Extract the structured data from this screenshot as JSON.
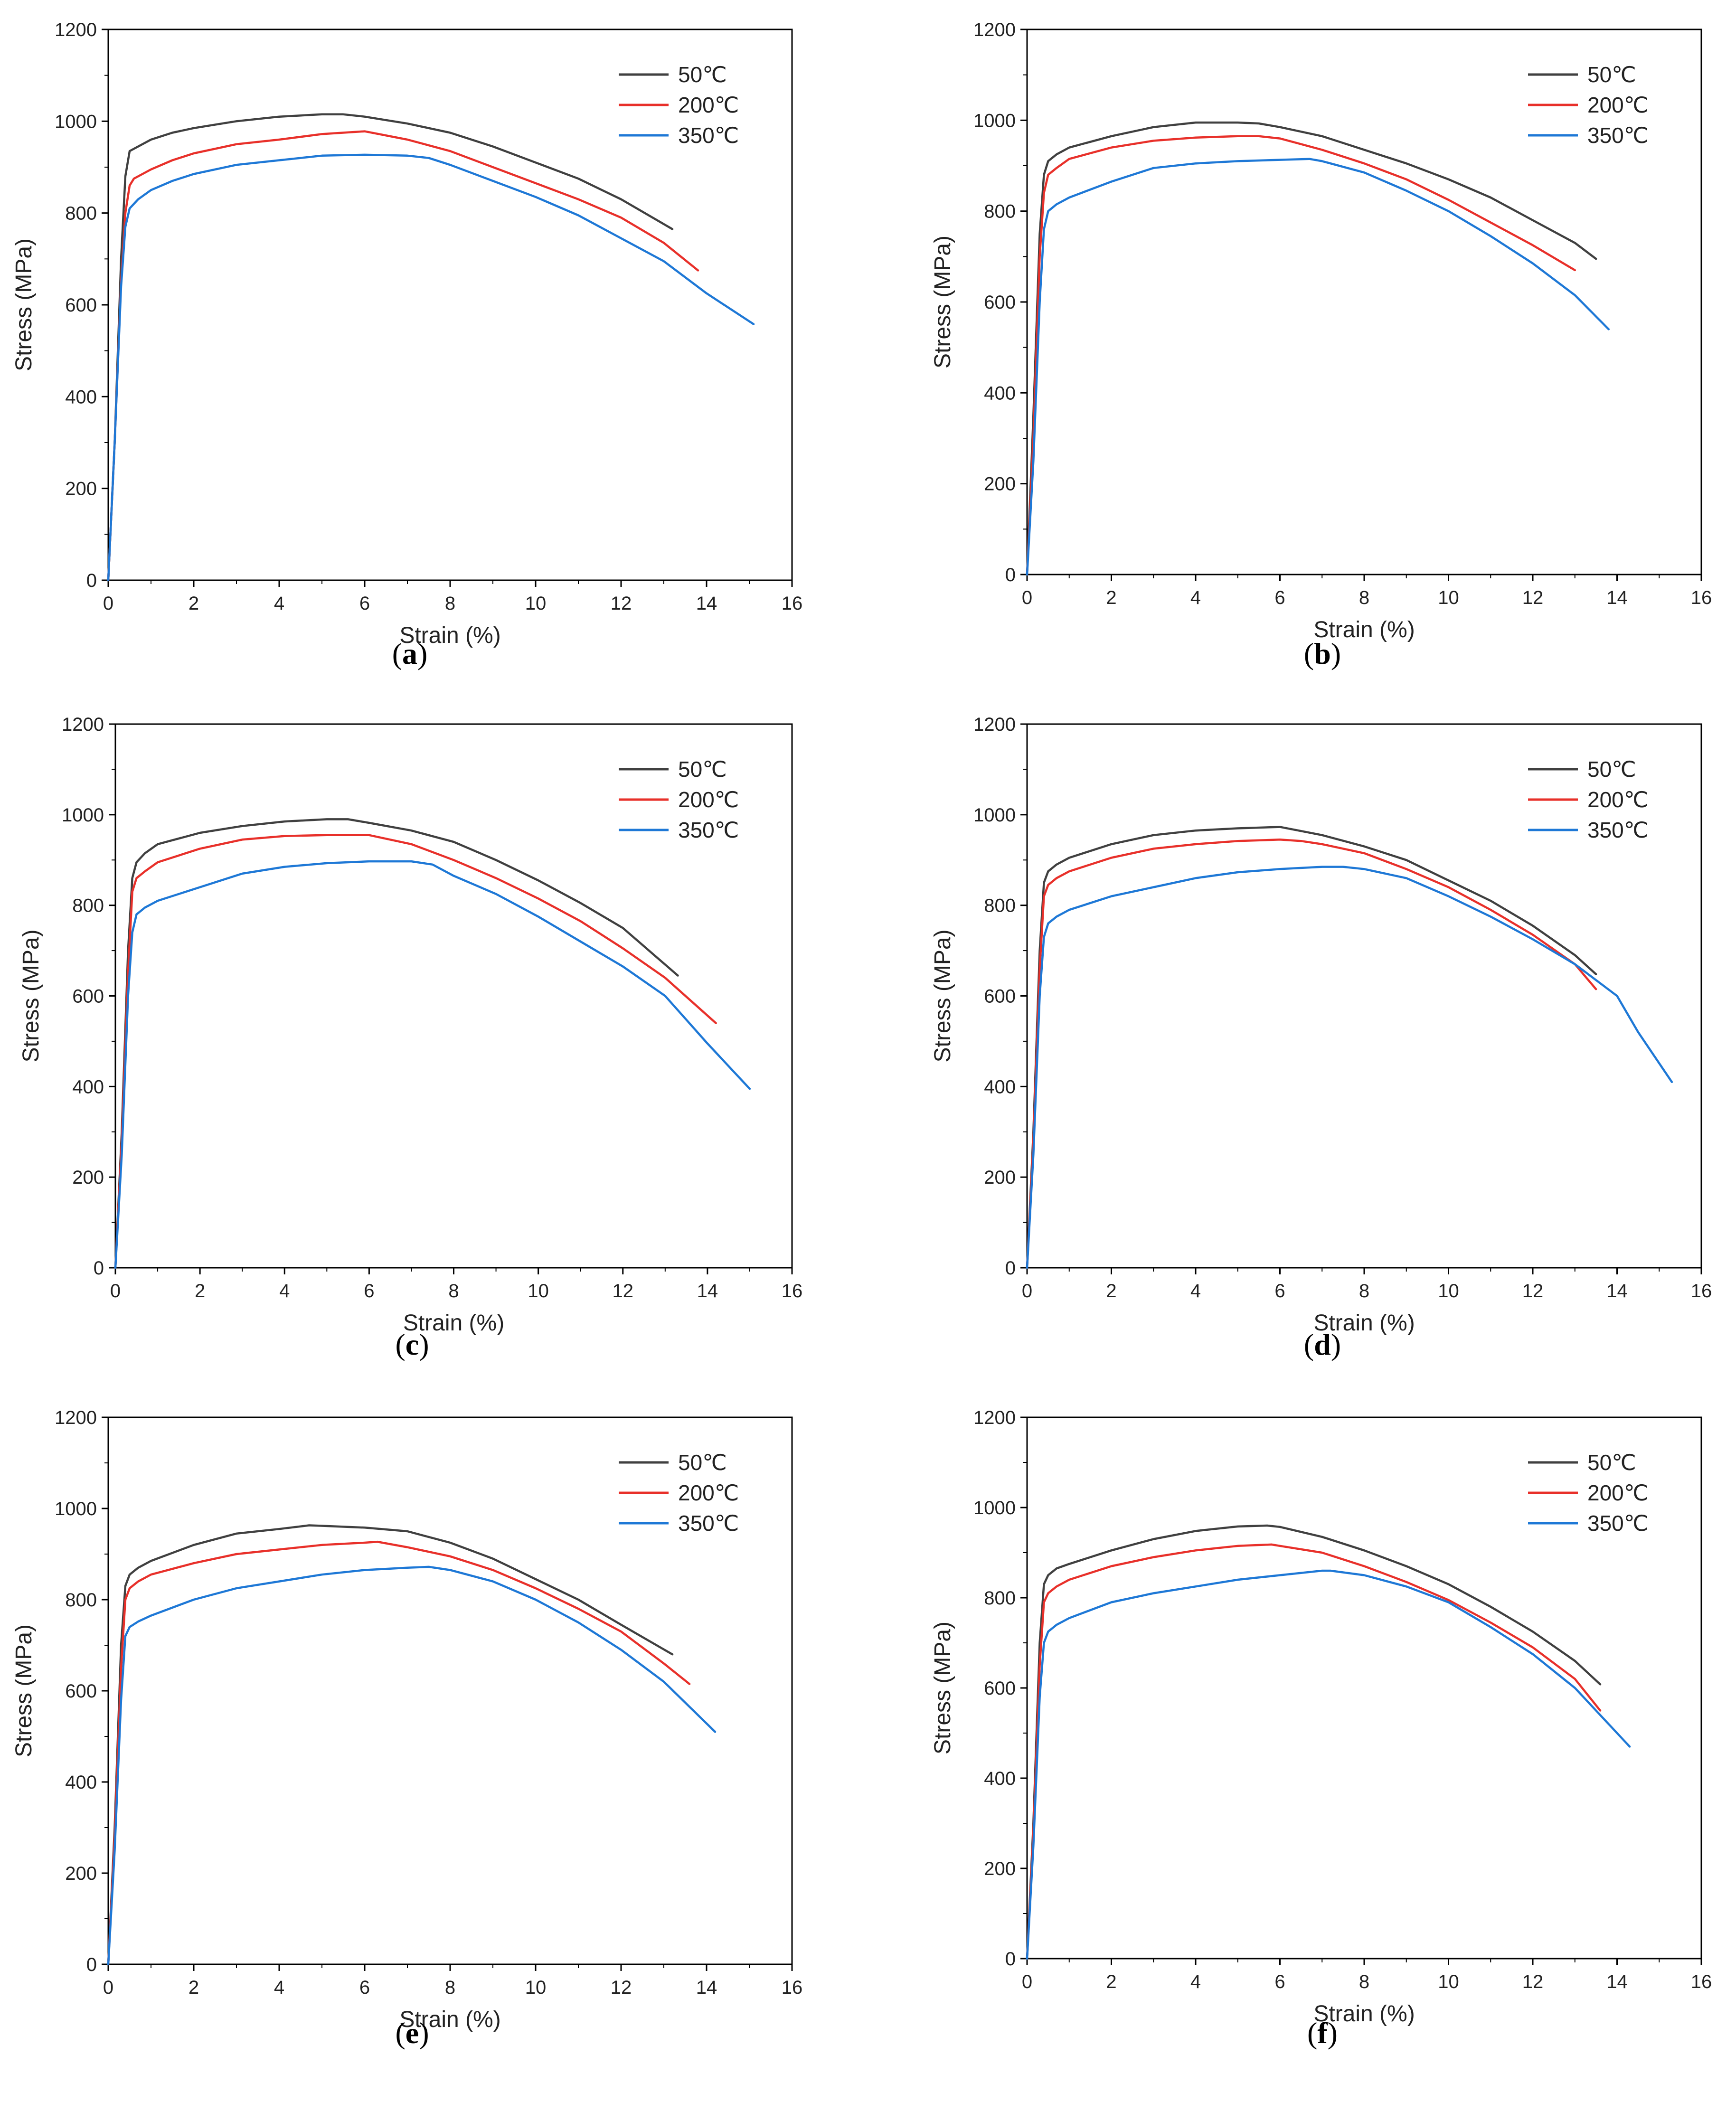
{
  "figure": {
    "colors": {
      "50": "#404040",
      "200": "#e8302a",
      "350": "#1e78d6"
    }
  },
  "chart_data": [
    {
      "id": "a",
      "caption_open": "(",
      "caption_letter": "a",
      "caption_close": ")",
      "type": "line",
      "xlabel": "Strain (%)",
      "ylabel": "Stress (MPa)",
      "xlim": [
        0,
        16
      ],
      "ylim": [
        0,
        1200
      ],
      "xticks": [
        "0",
        "2",
        "4",
        "6",
        "8",
        "10",
        "12",
        "14",
        "16"
      ],
      "yticks": [
        "0",
        "200",
        "400",
        "600",
        "800",
        "1000",
        "1200"
      ],
      "legend": [
        "50℃",
        "200℃",
        "350℃"
      ],
      "series": [
        {
          "name": "50℃",
          "x": [
            0,
            0.15,
            0.3,
            0.4,
            0.5,
            1,
            1.5,
            2,
            3,
            4,
            5,
            5.5,
            6,
            7,
            8,
            9,
            10,
            11,
            12,
            13.2
          ],
          "y": [
            0,
            300,
            700,
            880,
            935,
            960,
            975,
            985,
            1000,
            1010,
            1015,
            1015,
            1010,
            995,
            975,
            945,
            910,
            875,
            830,
            765
          ]
        },
        {
          "name": "200℃",
          "x": [
            0,
            0.15,
            0.3,
            0.4,
            0.5,
            0.6,
            1,
            1.5,
            2,
            3,
            4,
            5,
            6,
            7,
            8,
            9,
            10,
            11,
            12,
            13,
            13.8
          ],
          "y": [
            0,
            300,
            650,
            800,
            860,
            875,
            895,
            915,
            930,
            950,
            960,
            972,
            978,
            960,
            935,
            900,
            865,
            830,
            790,
            735,
            675
          ]
        },
        {
          "name": "350℃",
          "x": [
            0,
            0.15,
            0.3,
            0.4,
            0.5,
            0.7,
            1,
            1.5,
            2,
            3,
            4,
            5,
            6,
            7,
            7.5,
            8,
            9,
            10,
            11,
            12,
            13,
            14,
            15.1
          ],
          "y": [
            0,
            300,
            640,
            770,
            810,
            830,
            850,
            870,
            885,
            905,
            915,
            925,
            927,
            925,
            920,
            905,
            870,
            835,
            795,
            745,
            695,
            625,
            558
          ]
        }
      ]
    },
    {
      "id": "b",
      "caption_open": "(",
      "caption_letter": "b",
      "caption_close": ")",
      "type": "line",
      "xlabel": "Strain (%)",
      "ylabel": "Stress (MPa)",
      "xlim": [
        0,
        16
      ],
      "ylim": [
        0,
        1200
      ],
      "xticks": [
        "0",
        "2",
        "4",
        "6",
        "8",
        "10",
        "12",
        "14",
        "16"
      ],
      "yticks": [
        "0",
        "200",
        "400",
        "600",
        "800",
        "1000",
        "1200"
      ],
      "legend": [
        "50℃",
        "200℃",
        "350℃"
      ],
      "series": [
        {
          "name": "50℃",
          "x": [
            0,
            0.15,
            0.3,
            0.4,
            0.5,
            0.7,
            1,
            2,
            3,
            4,
            5,
            5.5,
            6,
            7,
            8,
            9,
            10,
            11,
            12,
            13,
            13.5
          ],
          "y": [
            0,
            350,
            750,
            880,
            910,
            925,
            940,
            965,
            985,
            995,
            995,
            993,
            985,
            965,
            935,
            905,
            870,
            830,
            780,
            730,
            695
          ]
        },
        {
          "name": "200℃",
          "x": [
            0,
            0.15,
            0.3,
            0.4,
            0.5,
            0.7,
            1,
            2,
            3,
            4,
            5,
            5.5,
            6,
            7,
            8,
            9,
            10,
            11,
            12,
            13
          ],
          "y": [
            0,
            300,
            700,
            840,
            880,
            895,
            915,
            940,
            955,
            962,
            965,
            965,
            960,
            935,
            905,
            870,
            825,
            775,
            725,
            670
          ]
        },
        {
          "name": "350℃",
          "x": [
            0,
            0.15,
            0.3,
            0.4,
            0.5,
            0.7,
            1,
            2,
            3,
            4,
            5,
            6,
            6.7,
            7,
            8,
            9,
            10,
            11,
            12,
            13,
            13.8
          ],
          "y": [
            0,
            250,
            600,
            760,
            800,
            815,
            830,
            865,
            895,
            905,
            910,
            913,
            915,
            910,
            885,
            845,
            800,
            745,
            685,
            615,
            540
          ]
        }
      ]
    },
    {
      "id": "c",
      "caption_open": "(",
      "caption_letter": "c",
      "caption_close": ")",
      "type": "line",
      "xlabel": "Strain (%)",
      "ylabel": "Stress (MPa)",
      "xlim": [
        0,
        16
      ],
      "ylim": [
        0,
        1200
      ],
      "xticks": [
        "0",
        "2",
        "4",
        "6",
        "8",
        "10",
        "12",
        "14",
        "16"
      ],
      "yticks": [
        "0",
        "200",
        "400",
        "600",
        "800",
        "1000",
        "1200"
      ],
      "legend": [
        "50℃",
        "200℃",
        "350℃"
      ],
      "series": [
        {
          "name": "50℃",
          "x": [
            0,
            0.15,
            0.3,
            0.4,
            0.5,
            0.7,
            1,
            2,
            3,
            4,
            5,
            5.5,
            6,
            7,
            8,
            9,
            10,
            11,
            12,
            13.3
          ],
          "y": [
            0,
            300,
            700,
            860,
            895,
            915,
            935,
            960,
            975,
            985,
            990,
            990,
            982,
            965,
            940,
            900,
            855,
            805,
            750,
            645
          ]
        },
        {
          "name": "200℃",
          "x": [
            0,
            0.15,
            0.3,
            0.4,
            0.5,
            0.7,
            1,
            2,
            3,
            4,
            5,
            6,
            7,
            8,
            9,
            10,
            11,
            12,
            13,
            14.2
          ],
          "y": [
            0,
            280,
            650,
            830,
            860,
            875,
            895,
            925,
            945,
            953,
            955,
            955,
            935,
            900,
            860,
            815,
            765,
            705,
            640,
            540
          ]
        },
        {
          "name": "350℃",
          "x": [
            0,
            0.15,
            0.3,
            0.4,
            0.5,
            0.7,
            1,
            2,
            3,
            4,
            5,
            6,
            7,
            7.5,
            8,
            9,
            10,
            11,
            12,
            13,
            14,
            15
          ],
          "y": [
            0,
            250,
            600,
            740,
            780,
            795,
            810,
            840,
            870,
            885,
            893,
            897,
            897,
            890,
            865,
            825,
            775,
            720,
            665,
            600,
            495,
            395
          ]
        }
      ]
    },
    {
      "id": "d",
      "caption_open": "(",
      "caption_letter": "d",
      "caption_close": ")",
      "type": "line",
      "xlabel": "Strain (%)",
      "ylabel": "Stress (MPa)",
      "xlim": [
        0,
        16
      ],
      "ylim": [
        0,
        1200
      ],
      "xticks": [
        "0",
        "2",
        "4",
        "6",
        "8",
        "10",
        "12",
        "14",
        "16"
      ],
      "yticks": [
        "0",
        "200",
        "400",
        "600",
        "800",
        "1000",
        "1200"
      ],
      "legend": [
        "50℃",
        "200℃",
        "350℃"
      ],
      "series": [
        {
          "name": "50℃",
          "x": [
            0,
            0.15,
            0.3,
            0.4,
            0.5,
            0.7,
            1,
            2,
            3,
            4,
            5,
            6,
            7,
            8,
            9,
            10,
            11,
            12,
            13,
            13.5
          ],
          "y": [
            0,
            300,
            700,
            850,
            875,
            890,
            905,
            935,
            955,
            965,
            970,
            973,
            955,
            930,
            900,
            855,
            810,
            755,
            690,
            648
          ]
        },
        {
          "name": "200℃",
          "x": [
            0,
            0.15,
            0.3,
            0.4,
            0.5,
            0.7,
            1,
            2,
            3,
            4,
            5,
            6,
            6.5,
            7,
            8,
            9,
            10,
            11,
            12,
            13,
            13.5
          ],
          "y": [
            0,
            280,
            660,
            820,
            845,
            860,
            875,
            905,
            925,
            935,
            942,
            945,
            942,
            935,
            915,
            880,
            840,
            790,
            735,
            670,
            615
          ]
        },
        {
          "name": "350℃",
          "x": [
            0,
            0.15,
            0.3,
            0.4,
            0.5,
            0.7,
            1,
            2,
            3,
            4,
            5,
            6,
            7,
            7.5,
            8,
            9,
            10,
            11,
            12,
            13,
            14,
            14.5,
            15.3
          ],
          "y": [
            0,
            250,
            600,
            730,
            760,
            775,
            790,
            820,
            840,
            860,
            873,
            880,
            885,
            885,
            880,
            860,
            820,
            775,
            725,
            670,
            600,
            520,
            410
          ]
        }
      ]
    },
    {
      "id": "e",
      "caption_open": "(",
      "caption_letter": "e",
      "caption_close": ")",
      "type": "line",
      "xlabel": "Strain (%)",
      "ylabel": "Stress (MPa)",
      "xlim": [
        0,
        16
      ],
      "ylim": [
        0,
        1200
      ],
      "xticks": [
        "0",
        "2",
        "4",
        "6",
        "8",
        "10",
        "12",
        "14",
        "16"
      ],
      "yticks": [
        "0",
        "200",
        "400",
        "600",
        "800",
        "1000",
        "1200"
      ],
      "legend": [
        "50℃",
        "200℃",
        "350℃"
      ],
      "series": [
        {
          "name": "50℃",
          "x": [
            0,
            0.15,
            0.3,
            0.4,
            0.5,
            0.7,
            1,
            2,
            3,
            4,
            4.7,
            5,
            6,
            7,
            8,
            9,
            10,
            11,
            12,
            13.2
          ],
          "y": [
            0,
            300,
            700,
            830,
            855,
            870,
            885,
            920,
            945,
            955,
            963,
            962,
            958,
            950,
            925,
            890,
            845,
            800,
            745,
            680
          ]
        },
        {
          "name": "200℃",
          "x": [
            0,
            0.15,
            0.3,
            0.4,
            0.5,
            0.7,
            1,
            2,
            3,
            4,
            5,
            6,
            6.3,
            7,
            8,
            9,
            10,
            11,
            12,
            13,
            13.6
          ],
          "y": [
            0,
            280,
            650,
            800,
            825,
            840,
            855,
            880,
            900,
            910,
            920,
            925,
            927,
            915,
            895,
            865,
            825,
            780,
            730,
            660,
            615
          ]
        },
        {
          "name": "350℃",
          "x": [
            0,
            0.15,
            0.3,
            0.4,
            0.5,
            0.7,
            1,
            2,
            3,
            4,
            5,
            6,
            7,
            7.5,
            8,
            9,
            10,
            11,
            12,
            13,
            14.2
          ],
          "y": [
            0,
            250,
            580,
            720,
            740,
            752,
            765,
            800,
            825,
            840,
            855,
            865,
            870,
            872,
            865,
            840,
            800,
            750,
            690,
            620,
            510
          ]
        }
      ]
    },
    {
      "id": "f",
      "caption_open": "(",
      "caption_letter": "f",
      "caption_close": ")",
      "type": "line",
      "xlabel": "Strain (%)",
      "ylabel": "Stress (MPa)",
      "xlim": [
        0,
        16
      ],
      "ylim": [
        0,
        1200
      ],
      "xticks": [
        "0",
        "2",
        "4",
        "6",
        "8",
        "10",
        "12",
        "14",
        "16"
      ],
      "yticks": [
        "0",
        "200",
        "400",
        "600",
        "800",
        "1000",
        "1200"
      ],
      "legend": [
        "50℃",
        "200℃",
        "350℃"
      ],
      "series": [
        {
          "name": "50℃",
          "x": [
            0,
            0.15,
            0.3,
            0.4,
            0.5,
            0.7,
            1,
            2,
            3,
            4,
            5,
            5.7,
            6,
            7,
            8,
            9,
            10,
            11,
            12,
            13,
            13.6
          ],
          "y": [
            0,
            300,
            700,
            830,
            850,
            865,
            875,
            905,
            930,
            948,
            958,
            960,
            957,
            935,
            905,
            870,
            830,
            780,
            725,
            660,
            608
          ]
        },
        {
          "name": "200℃",
          "x": [
            0,
            0.15,
            0.3,
            0.4,
            0.5,
            0.7,
            1,
            2,
            3,
            4,
            5,
            5.8,
            6,
            7,
            8,
            9,
            10,
            11,
            12,
            13,
            13.6
          ],
          "y": [
            0,
            280,
            650,
            790,
            810,
            825,
            840,
            870,
            890,
            905,
            915,
            918,
            915,
            900,
            870,
            835,
            795,
            745,
            690,
            620,
            550
          ]
        },
        {
          "name": "350℃",
          "x": [
            0,
            0.15,
            0.3,
            0.4,
            0.5,
            0.7,
            1,
            2,
            3,
            4,
            5,
            6,
            7,
            7.2,
            8,
            9,
            10,
            11,
            12,
            13,
            14.3
          ],
          "y": [
            0,
            250,
            580,
            700,
            725,
            740,
            755,
            790,
            810,
            825,
            840,
            850,
            860,
            860,
            850,
            825,
            790,
            735,
            675,
            600,
            470
          ]
        }
      ]
    }
  ]
}
